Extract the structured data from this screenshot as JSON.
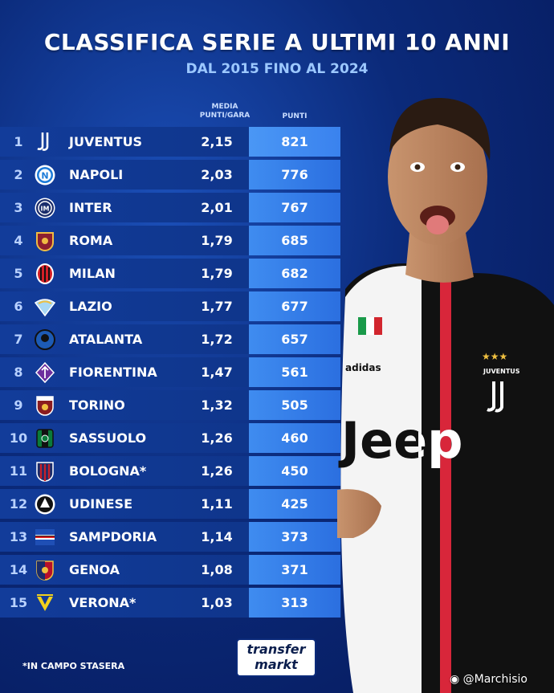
{
  "header": {
    "title": "CLASSIFICA SERIE A ULTIMI 10 ANNI",
    "subtitle": "DAL 2015 FINO AL 2024"
  },
  "columns": {
    "avg_line1": "MEDIA",
    "avg_line2": "PUNTI/GARA",
    "points": "PUNTI"
  },
  "rows": [
    {
      "pos": "1",
      "team": "JUVENTUS",
      "avg": "2,15",
      "pts": "821",
      "logo": "juventus-logo"
    },
    {
      "pos": "2",
      "team": "NAPOLI",
      "avg": "2,03",
      "pts": "776",
      "logo": "napoli-logo"
    },
    {
      "pos": "3",
      "team": "INTER",
      "avg": "2,01",
      "pts": "767",
      "logo": "inter-logo"
    },
    {
      "pos": "4",
      "team": "ROMA",
      "avg": "1,79",
      "pts": "685",
      "logo": "roma-logo"
    },
    {
      "pos": "5",
      "team": "MILAN",
      "avg": "1,79",
      "pts": "682",
      "logo": "milan-logo"
    },
    {
      "pos": "6",
      "team": "LAZIO",
      "avg": "1,77",
      "pts": "677",
      "logo": "lazio-logo"
    },
    {
      "pos": "7",
      "team": "ATALANTA",
      "avg": "1,72",
      "pts": "657",
      "logo": "atalanta-logo"
    },
    {
      "pos": "8",
      "team": "FIORENTINA",
      "avg": "1,47",
      "pts": "561",
      "logo": "fiorentina-logo"
    },
    {
      "pos": "9",
      "team": "TORINO",
      "avg": "1,32",
      "pts": "505",
      "logo": "torino-logo"
    },
    {
      "pos": "10",
      "team": "SASSUOLO",
      "avg": "1,26",
      "pts": "460",
      "logo": "sassuolo-logo"
    },
    {
      "pos": "11",
      "team": "BOLOGNA*",
      "avg": "1,26",
      "pts": "450",
      "logo": "bologna-logo"
    },
    {
      "pos": "12",
      "team": "UDINESE",
      "avg": "1,11",
      "pts": "425",
      "logo": "udinese-logo"
    },
    {
      "pos": "13",
      "team": "SAMPDORIA",
      "avg": "1,14",
      "pts": "373",
      "logo": "sampdoria-logo"
    },
    {
      "pos": "14",
      "team": "GENOA",
      "avg": "1,08",
      "pts": "371",
      "logo": "genoa-logo"
    },
    {
      "pos": "15",
      "team": "VERONA*",
      "avg": "1,03",
      "pts": "313",
      "logo": "verona-logo"
    }
  ],
  "player": {
    "shirt_sponsor": "Jeep",
    "shirt_brand": "adidas",
    "crest_text": "JUVENTUS"
  },
  "footnote": "*IN CAMPO STASERA",
  "brand_logo": {
    "line1": "transfer",
    "line2": "markt"
  },
  "watermark": "@Marchisio",
  "colors": {
    "background": "#0b2a7a",
    "row": "#123c9a",
    "points_cell": "#3f8cf0",
    "subtitle": "#9cc8ff"
  }
}
